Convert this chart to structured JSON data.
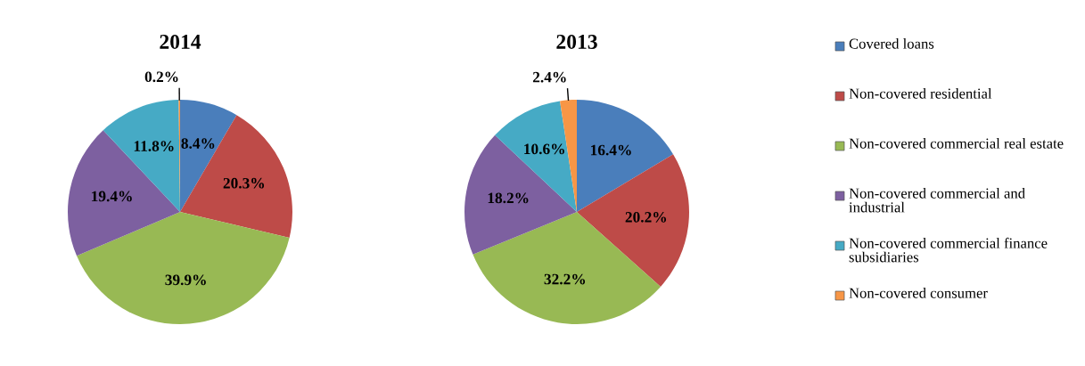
{
  "chart_data": [
    {
      "type": "pie",
      "title": "2014",
      "categories": [
        "Covered loans",
        "Non-covered residential",
        "Non-covered commercial real estate",
        "Non-covered commercial and industrial",
        "Non-covered commercial finance subsidiaries",
        "Non-covered consumer"
      ],
      "values": [
        8.4,
        20.3,
        39.9,
        19.4,
        11.8,
        0.2
      ],
      "value_labels": [
        "8.4%",
        "20.3%",
        "39.9%",
        "19.4%",
        "11.8%",
        "0.2%"
      ],
      "colors": [
        "#4a7ebb",
        "#be4b48",
        "#98b954",
        "#7d60a0",
        "#46aac5",
        "#f79646"
      ],
      "legend": "right"
    },
    {
      "type": "pie",
      "title": "2013",
      "categories": [
        null,
        null,
        null,
        null,
        null,
        null
      ],
      "values": [
        16.4,
        20.2,
        32.2,
        18.2,
        10.6,
        2.4
      ],
      "value_labels": [
        "16.4%",
        "20.2%",
        "32.2%",
        "18.2%",
        "10.6%",
        "2.4%"
      ],
      "colors": [
        "#4a7ebb",
        "#be4b48",
        "#98b954",
        "#7d60a0",
        "#46aac5",
        "#f79646"
      ]
    }
  ]
}
